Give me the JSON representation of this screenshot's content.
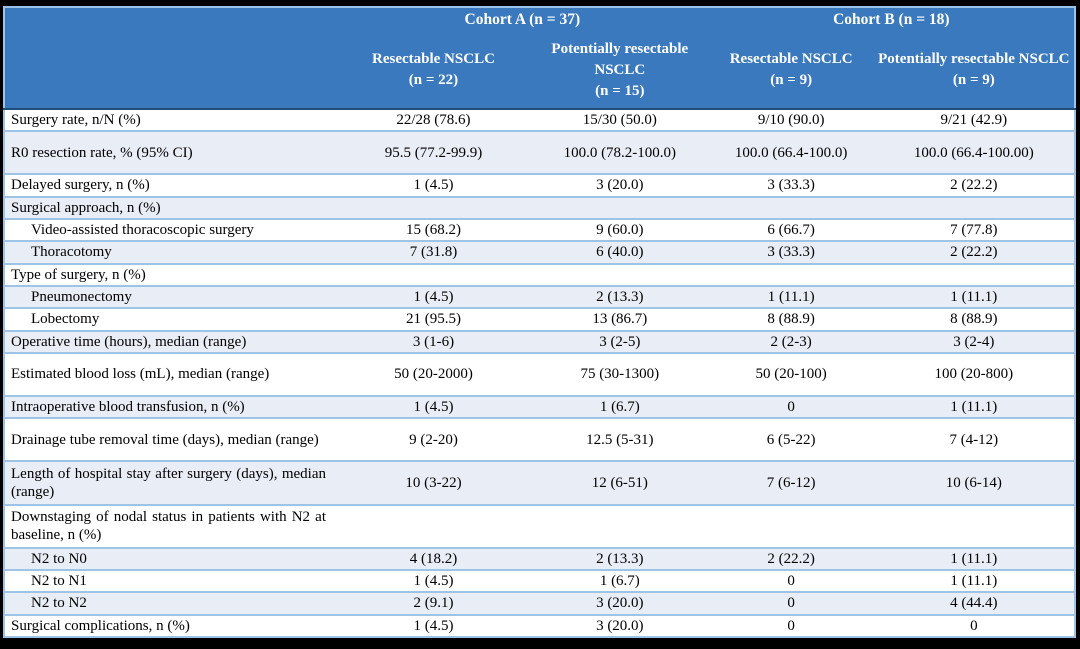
{
  "colors": {
    "header_blue": "#3A79BD",
    "header_underline_navy": "#1F4E79",
    "row_border_light_blue": "#9DC3E6",
    "stripe_pale_blue": "#E9EDF5",
    "frame_black": "#000000",
    "header_text": "#FFFFFF",
    "body_text": "#000000"
  },
  "table": {
    "cohort_headers": [
      {
        "label": "Cohort A (n = 37)"
      },
      {
        "label": "Cohort B (n = 18)"
      }
    ],
    "column_headers": [
      {
        "title": "Resectable NSCLC",
        "n": "(n = 22)"
      },
      {
        "title": "Potentially resectable NSCLC",
        "n": "(n = 15)"
      },
      {
        "title": "Resectable NSCLC",
        "n": "(n = 9)"
      },
      {
        "title": "Potentially resectable NSCLC",
        "n": "(n = 9)"
      }
    ],
    "rows": [
      {
        "label": "Surgery rate, n/N (%)",
        "indent": false,
        "tall": false,
        "values": [
          "22/28 (78.6)",
          "15/30 (50.0)",
          "9/10 (90.0)",
          "9/21 (42.9)"
        ]
      },
      {
        "label": "R0 resection rate, % (95% CI)",
        "indent": false,
        "tall": true,
        "values": [
          "95.5 (77.2-99.9)",
          "100.0 (78.2-100.0)",
          "100.0 (66.4-100.0)",
          "100.0 (66.4-100.00)"
        ]
      },
      {
        "label": "Delayed surgery, n (%)",
        "indent": false,
        "tall": false,
        "values": [
          "1 (4.5)",
          "3 (20.0)",
          "3 (33.3)",
          "2 (22.2)"
        ]
      },
      {
        "label": "Surgical approach, n (%)",
        "indent": false,
        "tall": false,
        "values": [
          "",
          "",
          "",
          ""
        ]
      },
      {
        "label": "Video-assisted thoracoscopic surgery",
        "indent": true,
        "tall": false,
        "values": [
          "15 (68.2)",
          "9 (60.0)",
          "6 (66.7)",
          "7 (77.8)"
        ]
      },
      {
        "label": "Thoracotomy",
        "indent": true,
        "tall": false,
        "values": [
          "7 (31.8)",
          "6 (40.0)",
          "3 (33.3)",
          "2 (22.2)"
        ]
      },
      {
        "label": "Type of surgery, n (%)",
        "indent": false,
        "tall": false,
        "values": [
          "",
          "",
          "",
          ""
        ]
      },
      {
        "label": "Pneumonectomy",
        "indent": true,
        "tall": false,
        "values": [
          "1 (4.5)",
          "2 (13.3)",
          "1 (11.1)",
          "1 (11.1)"
        ]
      },
      {
        "label": "Lobectomy",
        "indent": true,
        "tall": false,
        "values": [
          "21 (95.5)",
          "13 (86.7)",
          "8 (88.9)",
          "8 (88.9)"
        ]
      },
      {
        "label": "Operative time (hours), median (range)",
        "indent": false,
        "tall": false,
        "values": [
          "3 (1-6)",
          "3 (2-5)",
          "2 (2-3)",
          "3 (2-4)"
        ]
      },
      {
        "label": "Estimated blood loss (mL), median (range)",
        "indent": false,
        "tall": true,
        "values": [
          "50 (20-2000)",
          "75 (30-1300)",
          "50 (20-100)",
          "100 (20-800)"
        ]
      },
      {
        "label": "Intraoperative blood transfusion, n (%)",
        "indent": false,
        "tall": false,
        "values": [
          "1 (4.5)",
          "1 (6.7)",
          "0",
          "1 (11.1)"
        ]
      },
      {
        "label": "Drainage tube removal time (days), median (range)",
        "indent": false,
        "tall": true,
        "values": [
          "9 (2-20)",
          "12.5 (5-31)",
          "6 (5-22)",
          "7 (4-12)"
        ]
      },
      {
        "label": "Length of hospital stay after surgery (days), median (range)",
        "indent": false,
        "tall": true,
        "values": [
          "10 (3-22)",
          "12 (6-51)",
          "7 (6-12)",
          "10 (6-14)"
        ]
      },
      {
        "label": "Downstaging of nodal status in patients with N2 at baseline, n (%)",
        "indent": false,
        "tall": true,
        "values": [
          "",
          "",
          "",
          ""
        ]
      },
      {
        "label": "N2 to N0",
        "indent": true,
        "tall": false,
        "values": [
          "4 (18.2)",
          "2 (13.3)",
          "2 (22.2)",
          "1 (11.1)"
        ]
      },
      {
        "label": "N2 to N1",
        "indent": true,
        "tall": false,
        "values": [
          "1 (4.5)",
          "1 (6.7)",
          "0",
          "1 (11.1)"
        ]
      },
      {
        "label": "N2 to N2",
        "indent": true,
        "tall": false,
        "values": [
          "2 (9.1)",
          "3 (20.0)",
          "0",
          "4 (44.4)"
        ]
      },
      {
        "label": "Surgical complications, n (%)",
        "indent": false,
        "tall": false,
        "values": [
          "1 (4.5)",
          "3 (20.0)",
          "0",
          "0"
        ]
      }
    ]
  }
}
